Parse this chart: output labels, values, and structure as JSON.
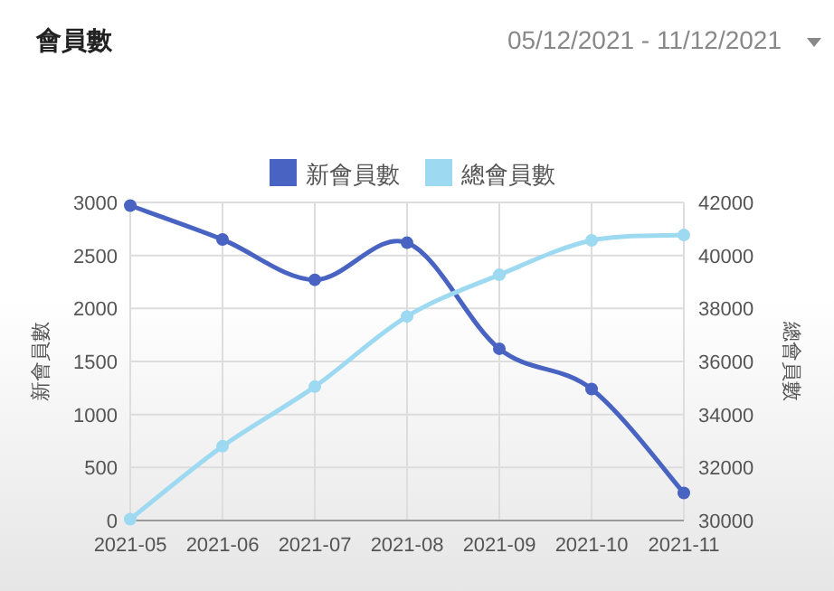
{
  "chart_data": {
    "type": "line",
    "title": "會員數",
    "subtitle": "05/12/2021 - 11/12/2021",
    "categories": [
      "2021-05",
      "2021-06",
      "2021-07",
      "2021-08",
      "2021-09",
      "2021-10",
      "2021-11"
    ],
    "series": [
      {
        "name": "新會員數",
        "color": "#4863c2",
        "values": [
          2970,
          2650,
          2270,
          2620,
          1620,
          1240,
          260
        ]
      },
      {
        "name": "總會員數",
        "color": "#9ed9f2",
        "axis": "y2",
        "values": [
          30050,
          32800,
          35050,
          37700,
          39270,
          40570,
          40770
        ]
      }
    ],
    "ylim": [
      0,
      3000
    ],
    "yticks": [
      0,
      500,
      1000,
      1500,
      2000,
      2500,
      3000
    ],
    "y2lim": [
      30000,
      42000
    ],
    "y2ticks": [
      30000,
      32000,
      34000,
      36000,
      38000,
      40000,
      42000
    ],
    "ylabel": "新會員數",
    "y2label": "總會員數",
    "grid": true,
    "legend": "top",
    "marker": "circle",
    "line_style": "solid"
  }
}
